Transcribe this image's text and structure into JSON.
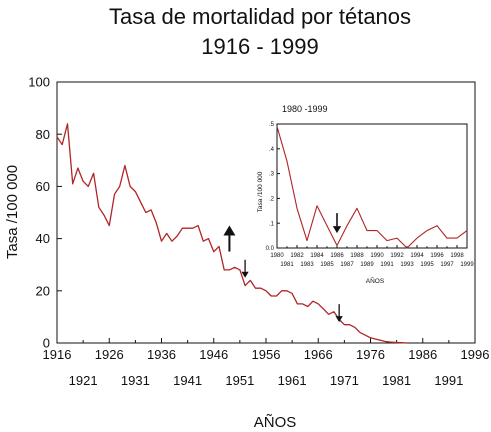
{
  "chart_data": [
    {
      "type": "line",
      "title": "Tasa de mortalidad por tétanos",
      "subtitle": "1916 - 1999",
      "xlabel": "AÑOS",
      "ylabel": "Tasa /100 000",
      "xlim": [
        1916,
        1996
      ],
      "ylim": [
        0,
        100
      ],
      "x_ticks_upper": [
        "1916",
        "1926",
        "1936",
        "1946",
        "1956",
        "1966",
        "1976",
        "1986",
        "1996"
      ],
      "x_ticks_lower": [
        "1921",
        "1931",
        "1941",
        "1951",
        "1961",
        "1971",
        "1981",
        "1991"
      ],
      "y_ticks": [
        "0",
        "20",
        "40",
        "60",
        "80",
        "100"
      ],
      "line_color": "#b02525",
      "series": [
        {
          "x": [
            1916,
            1917,
            1918,
            1919,
            1920,
            1921,
            1922,
            1923,
            1924,
            1925,
            1926,
            1927,
            1928,
            1929,
            1930,
            1931,
            1932,
            1933,
            1934,
            1935,
            1936,
            1937,
            1938,
            1939,
            1940,
            1941,
            1942,
            1943,
            1944,
            1945,
            1946,
            1947,
            1948,
            1949,
            1950,
            1951,
            1952,
            1953,
            1954,
            1955,
            1956,
            1957,
            1958,
            1959,
            1960,
            1961,
            1962,
            1963,
            1964,
            1965,
            1966,
            1967,
            1968,
            1969,
            1970,
            1971,
            1972,
            1973,
            1974,
            1975,
            1976,
            1977,
            1978,
            1979,
            1980,
            1981,
            1982,
            1983
          ],
          "values": [
            79,
            76,
            84,
            61,
            67,
            62,
            60,
            65,
            52,
            49,
            45,
            57,
            60,
            68,
            60,
            58,
            54,
            50,
            51,
            46,
            39,
            42,
            39,
            41,
            44,
            44,
            44,
            45,
            39,
            40,
            35,
            37,
            28,
            28,
            29,
            28,
            22,
            24,
            21,
            21,
            20,
            18,
            18,
            20,
            20,
            19,
            15,
            15,
            14,
            16,
            15,
            13,
            11,
            12,
            9,
            7,
            7,
            6,
            4,
            3,
            2,
            1.5,
            1,
            0.5,
            0.3,
            0.2,
            0.1,
            0
          ]
        }
      ],
      "annotations": [
        {
          "type": "arrow-up",
          "x": 1949,
          "y": 45
        },
        {
          "type": "arrow-down",
          "x": 1952,
          "y": 25
        },
        {
          "type": "arrow-down",
          "x": 1970,
          "y": 8
        }
      ]
    },
    {
      "type": "line",
      "title": "1980 -1999",
      "xlabel": "AÑOS",
      "ylabel": "Tasa /100 000",
      "xlim": [
        1980,
        1999
      ],
      "ylim": [
        0,
        0.5
      ],
      "x_ticks_upper": [
        "1980",
        "1982",
        "1984",
        "1986",
        "1988",
        "1990",
        "1992",
        "1994",
        "1996",
        "1998"
      ],
      "x_ticks_lower": [
        "1981",
        "1983",
        "1985",
        "1987",
        "1989",
        "1991",
        "1993",
        "1995",
        "1997",
        "1999"
      ],
      "y_ticks": [
        "0.0",
        ".1",
        ".2",
        ".3",
        ".4",
        ".5"
      ],
      "line_color": "#b02525",
      "series": [
        {
          "x": [
            1980,
            1981,
            1982,
            1983,
            1984,
            1985,
            1986,
            1987,
            1988,
            1989,
            1990,
            1991,
            1992,
            1993,
            1994,
            1995,
            1996,
            1997,
            1998,
            1999
          ],
          "values": [
            0.49,
            0.35,
            0.16,
            0.03,
            0.17,
            0.09,
            0.01,
            0.09,
            0.16,
            0.07,
            0.07,
            0.03,
            0.04,
            0.0,
            0.04,
            0.07,
            0.09,
            0.04,
            0.04,
            0.07
          ]
        }
      ],
      "annotations": [
        {
          "type": "arrow-down",
          "x": 1986,
          "y": 0.06
        }
      ]
    }
  ]
}
